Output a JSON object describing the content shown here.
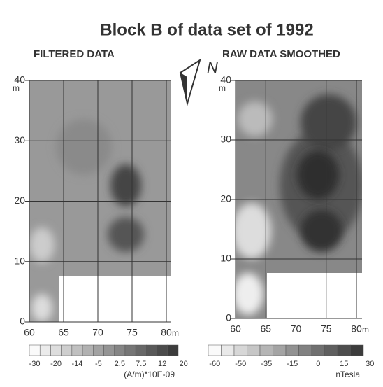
{
  "title": "Block B of data set of 1992",
  "north": "N",
  "panels": [
    {
      "label": "FILTERED DATA",
      "xticks": [
        "60",
        "65",
        "70",
        "75",
        "80"
      ],
      "x_unit": "m",
      "yticks": [
        "0",
        "10",
        "20",
        "30",
        "40"
      ],
      "y_unit": "m",
      "colorbar": {
        "labels": [
          "-30",
          "-20",
          "-14",
          "-5",
          "2.5",
          "7.5",
          "12",
          "20"
        ],
        "unit": "(A/m)*10E-09"
      }
    },
    {
      "label": "RAW DATA SMOOTHED",
      "xticks": [
        "60",
        "65",
        "70",
        "75",
        "80"
      ],
      "x_unit": "m",
      "yticks": [
        "0",
        "10",
        "20",
        "30",
        "40"
      ],
      "y_unit": "m",
      "colorbar": {
        "labels": [
          "-60",
          "-50",
          "-35",
          "-15",
          "0",
          "15",
          "30"
        ],
        "unit": "nTesla"
      }
    }
  ]
}
